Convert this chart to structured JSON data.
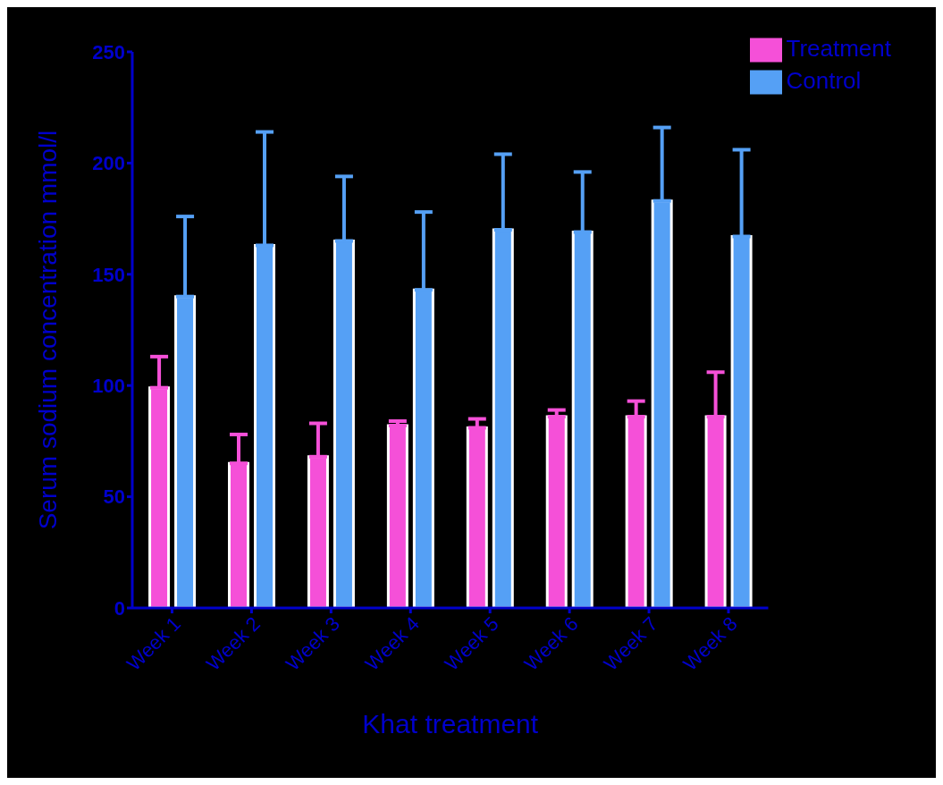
{
  "chart_data": {
    "type": "bar",
    "xlabel": "Khat treatment",
    "ylabel": "Serum sodium concentration mmol/l",
    "categories": [
      "Week 1",
      "Week 2",
      "Week 3",
      "Week 4",
      "Week 5",
      "Week 6",
      "Week 7",
      "Week 8"
    ],
    "series": [
      {
        "name": "Treatment",
        "color": "#f550d8",
        "values": [
          99,
          65,
          68,
          82,
          81,
          86,
          86,
          86
        ],
        "errors": [
          [
            99,
            113
          ],
          [
            65,
            78
          ],
          [
            68,
            83
          ],
          [
            82,
            84
          ],
          [
            81,
            85
          ],
          [
            86,
            89
          ],
          [
            86,
            93
          ],
          [
            86,
            106
          ]
        ]
      },
      {
        "name": "Control",
        "color": "#55a0f5",
        "values": [
          140,
          163,
          165,
          143,
          170,
          169,
          183,
          167
        ],
        "errors": [
          [
            140,
            176
          ],
          [
            163,
            214
          ],
          [
            165,
            194
          ],
          [
            143,
            178
          ],
          [
            170,
            204
          ],
          [
            169,
            196
          ],
          [
            183,
            216
          ],
          [
            167,
            206
          ]
        ]
      }
    ],
    "ylim": [
      0,
      250
    ],
    "yticks": [
      0,
      50,
      100,
      150,
      200,
      250
    ],
    "grid": false,
    "legend": "top right"
  }
}
